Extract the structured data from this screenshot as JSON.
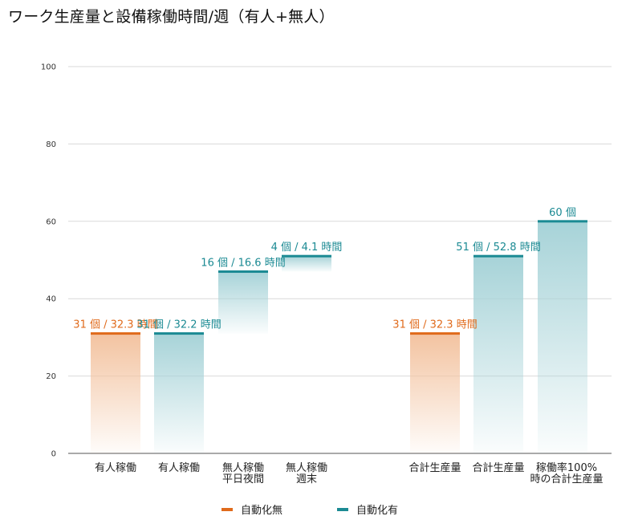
{
  "chart_data": {
    "type": "bar",
    "title": "ワーク生産量と設備稼働時間/週（有人+無人）",
    "xlabel": "",
    "ylabel": "",
    "ylim": [
      0,
      100
    ],
    "yticks": [
      0,
      20,
      40,
      60,
      80,
      100
    ],
    "grid": true,
    "legend_position": "bottom",
    "colors": {
      "manual": "#E06A1B",
      "auto": "#1B8A93",
      "manual_fill": "#F3C3A0",
      "auto_fill": "#A7D3D8"
    },
    "series": [
      {
        "name": "自動化無",
        "color": "#E06A1B"
      },
      {
        "name": "自動化有",
        "color": "#1B8A93"
      }
    ],
    "bars": [
      {
        "category": [
          "有人稼働"
        ],
        "series": 0,
        "bottom": 0,
        "top": 31,
        "label": "31 個 / 32.3 時間"
      },
      {
        "category": [
          "有人稼働"
        ],
        "series": 1,
        "bottom": 0,
        "top": 31,
        "label": "31 個 / 32.2 時間"
      },
      {
        "category": [
          "無人稼働",
          "平日夜間"
        ],
        "series": 1,
        "bottom": 31,
        "top": 47,
        "label": "16 個 / 16.6 時間"
      },
      {
        "category": [
          "無人稼働",
          "週末"
        ],
        "series": 1,
        "bottom": 47,
        "top": 51,
        "label": "4 個 / 4.1 時間"
      },
      {
        "category": [
          "合計生産量"
        ],
        "series": 0,
        "bottom": 0,
        "top": 31,
        "label": "31 個 / 32.3 時間"
      },
      {
        "category": [
          "合計生産量"
        ],
        "series": 1,
        "bottom": 0,
        "top": 51,
        "label": "51 個 / 52.8 時間"
      },
      {
        "category": [
          "稼働率100%",
          "時の合計生産量"
        ],
        "series": 1,
        "bottom": 0,
        "top": 60,
        "label": "60 個"
      }
    ]
  }
}
